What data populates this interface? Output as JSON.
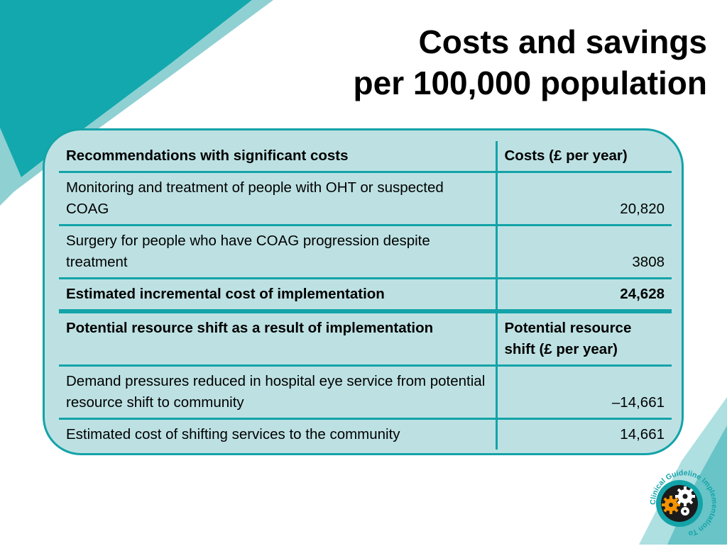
{
  "title": {
    "line1": "Costs and savings",
    "line2": "per 100,000 population"
  },
  "table": {
    "header1": {
      "desc": "Recommendations with significant costs",
      "value": "Costs (£ per year)"
    },
    "rows1": [
      {
        "desc": "Monitoring and treatment of people with OHT or suspected COAG",
        "value": "20,820"
      },
      {
        "desc": "Surgery for people who have COAG progression despite treatment",
        "value": "3808"
      }
    ],
    "total1": {
      "desc": "Estimated incremental cost of implementation",
      "value": "24,628"
    },
    "header2": {
      "desc": "Potential resource shift as a result of implementation",
      "value": "Potential resource shift  (£ per year)"
    },
    "rows2": [
      {
        "desc": "Demand pressures  reduced in hospital eye service from  potential resource shift to community",
        "value": "–14,661"
      },
      {
        "desc": "Estimated cost of shifting services to the community",
        "value": "14,661"
      }
    ]
  },
  "logo": {
    "text": "Clinical Guideline Implementation Tools",
    "icon": "gears-icon"
  },
  "colors": {
    "teal": "#13a3a8",
    "light_teal": "#bde1e3",
    "orange": "#f39200"
  }
}
